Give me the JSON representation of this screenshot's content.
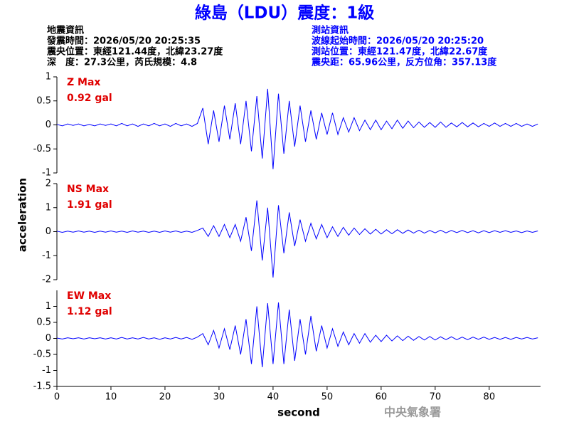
{
  "chart_data": {
    "type": "line",
    "title": "綠島（LDU）震度：1級",
    "info_left": [
      "地震資訊",
      "發震時間：2026/05/20 20:25:35",
      "震央位置：東經121.44度，北緯23.27度",
      "深　度：27.3公里，芮氏規模：4.8"
    ],
    "info_right": [
      "測站資訊",
      "波線起始時間：2026/05/20 20:25:20",
      "測站位置：東經121.47度，北緯22.67度",
      "震央距：65.96公里，反方位角：357.13度"
    ],
    "y_label": "acceleration",
    "x_label": "second",
    "footer": "中央氣象署",
    "xlim": [
      0,
      89.5
    ],
    "xticks": [
      0,
      10,
      20,
      30,
      40,
      50,
      60,
      70,
      80
    ],
    "x": [
      0,
      1,
      2,
      3,
      4,
      5,
      6,
      7,
      8,
      9,
      10,
      11,
      12,
      13,
      14,
      15,
      16,
      17,
      18,
      19,
      20,
      21,
      22,
      23,
      24,
      25,
      26,
      27,
      28,
      29,
      30,
      31,
      32,
      33,
      34,
      35,
      36,
      37,
      38,
      39,
      40,
      41,
      42,
      43,
      44,
      45,
      46,
      47,
      48,
      49,
      50,
      51,
      52,
      53,
      54,
      55,
      56,
      57,
      58,
      59,
      60,
      61,
      62,
      63,
      64,
      65,
      66,
      67,
      68,
      69,
      70,
      71,
      72,
      73,
      74,
      75,
      76,
      77,
      78,
      79,
      80,
      81,
      82,
      83,
      84,
      85,
      86,
      87,
      88,
      89
    ],
    "series": [
      {
        "name": "Z Max",
        "max_label": "0.92 gal",
        "color": "#0000ff",
        "label_color": "#e00000",
        "ylim": [
          -1,
          1
        ],
        "yticks": [
          -1,
          -0.5,
          0,
          0.5,
          1
        ],
        "values": [
          0.01,
          -0.02,
          0.02,
          -0.01,
          0.02,
          -0.02,
          0.01,
          -0.02,
          0.02,
          -0.01,
          0.02,
          -0.02,
          0.03,
          -0.02,
          0.02,
          -0.03,
          0.02,
          -0.02,
          0.03,
          -0.02,
          0.02,
          -0.03,
          0.03,
          -0.02,
          0.02,
          -0.03,
          0.03,
          0.35,
          -0.4,
          0.3,
          -0.35,
          0.4,
          -0.3,
          0.45,
          -0.4,
          0.5,
          -0.55,
          0.6,
          -0.7,
          0.75,
          -0.92,
          0.65,
          -0.6,
          0.5,
          -0.45,
          0.4,
          -0.35,
          0.3,
          -0.3,
          0.25,
          -0.2,
          0.25,
          -0.2,
          0.15,
          -0.15,
          0.15,
          -0.12,
          0.1,
          -0.1,
          0.1,
          -0.1,
          0.08,
          -0.08,
          0.1,
          -0.07,
          0.08,
          -0.06,
          0.06,
          -0.05,
          0.05,
          -0.05,
          0.06,
          -0.05,
          0.04,
          -0.04,
          0.05,
          -0.04,
          0.04,
          -0.04,
          0.03,
          -0.03,
          0.04,
          -0.03,
          0.03,
          -0.03,
          0.03,
          -0.03,
          0.02,
          -0.03,
          0.02
        ]
      },
      {
        "name": "NS Max",
        "max_label": "1.91 gal",
        "color": "#0000ff",
        "label_color": "#e00000",
        "ylim": [
          -2,
          2
        ],
        "yticks": [
          -2,
          -1,
          0,
          1,
          2
        ],
        "values": [
          0.02,
          -0.03,
          0.02,
          -0.02,
          0.03,
          -0.02,
          0.02,
          -0.03,
          0.02,
          -0.02,
          0.03,
          -0.02,
          0.02,
          -0.03,
          0.03,
          -0.02,
          0.02,
          -0.03,
          0.02,
          -0.03,
          0.03,
          -0.02,
          0.03,
          -0.03,
          0.02,
          -0.03,
          0.05,
          0.15,
          -0.2,
          0.25,
          -0.2,
          0.3,
          -0.25,
          0.3,
          -0.4,
          0.6,
          -0.8,
          1.3,
          -1.2,
          1.0,
          -1.91,
          1.1,
          -0.9,
          0.8,
          -0.6,
          0.5,
          -0.4,
          0.35,
          -0.3,
          0.3,
          -0.25,
          0.2,
          -0.2,
          0.18,
          -0.15,
          0.15,
          -0.12,
          0.12,
          -0.1,
          0.1,
          -0.1,
          0.08,
          -0.09,
          0.08,
          -0.07,
          0.07,
          -0.06,
          0.06,
          -0.06,
          0.05,
          -0.05,
          0.06,
          -0.05,
          0.05,
          -0.04,
          0.05,
          -0.04,
          0.04,
          -0.05,
          0.04,
          -0.04,
          0.04,
          -0.03,
          0.04,
          -0.03,
          0.03,
          -0.04,
          0.03,
          -0.03,
          0.03
        ]
      },
      {
        "name": "EW Max",
        "max_label": "1.12 gal",
        "color": "#0000ff",
        "label_color": "#e00000",
        "ylim": [
          -1.5,
          1.5
        ],
        "yticks": [
          -1.5,
          -1,
          -0.5,
          0,
          0.5,
          1
        ],
        "values": [
          0.01,
          -0.02,
          0.02,
          -0.01,
          0.02,
          -0.02,
          0.02,
          -0.01,
          0.02,
          -0.02,
          0.02,
          -0.02,
          0.03,
          -0.02,
          0.02,
          -0.02,
          0.03,
          -0.02,
          0.02,
          -0.03,
          0.02,
          -0.02,
          0.03,
          -0.02,
          0.03,
          -0.03,
          0.04,
          0.15,
          -0.2,
          0.25,
          -0.3,
          0.3,
          -0.35,
          0.4,
          -0.5,
          0.6,
          -0.8,
          1.0,
          -0.9,
          1.1,
          -0.8,
          1.12,
          -0.8,
          0.9,
          -0.7,
          0.6,
          -0.5,
          0.7,
          -0.4,
          0.4,
          -0.3,
          0.3,
          -0.25,
          0.2,
          -0.2,
          0.15,
          -0.15,
          0.15,
          -0.12,
          0.1,
          -0.1,
          0.1,
          -0.08,
          0.08,
          -0.07,
          0.07,
          -0.06,
          0.06,
          -0.05,
          0.06,
          -0.05,
          0.05,
          -0.04,
          0.05,
          -0.04,
          0.04,
          -0.04,
          0.04,
          -0.03,
          0.04,
          -0.03,
          0.03,
          -0.03,
          0.03,
          -0.03,
          0.03,
          -0.02,
          0.03,
          -0.02,
          0.02
        ]
      }
    ]
  }
}
